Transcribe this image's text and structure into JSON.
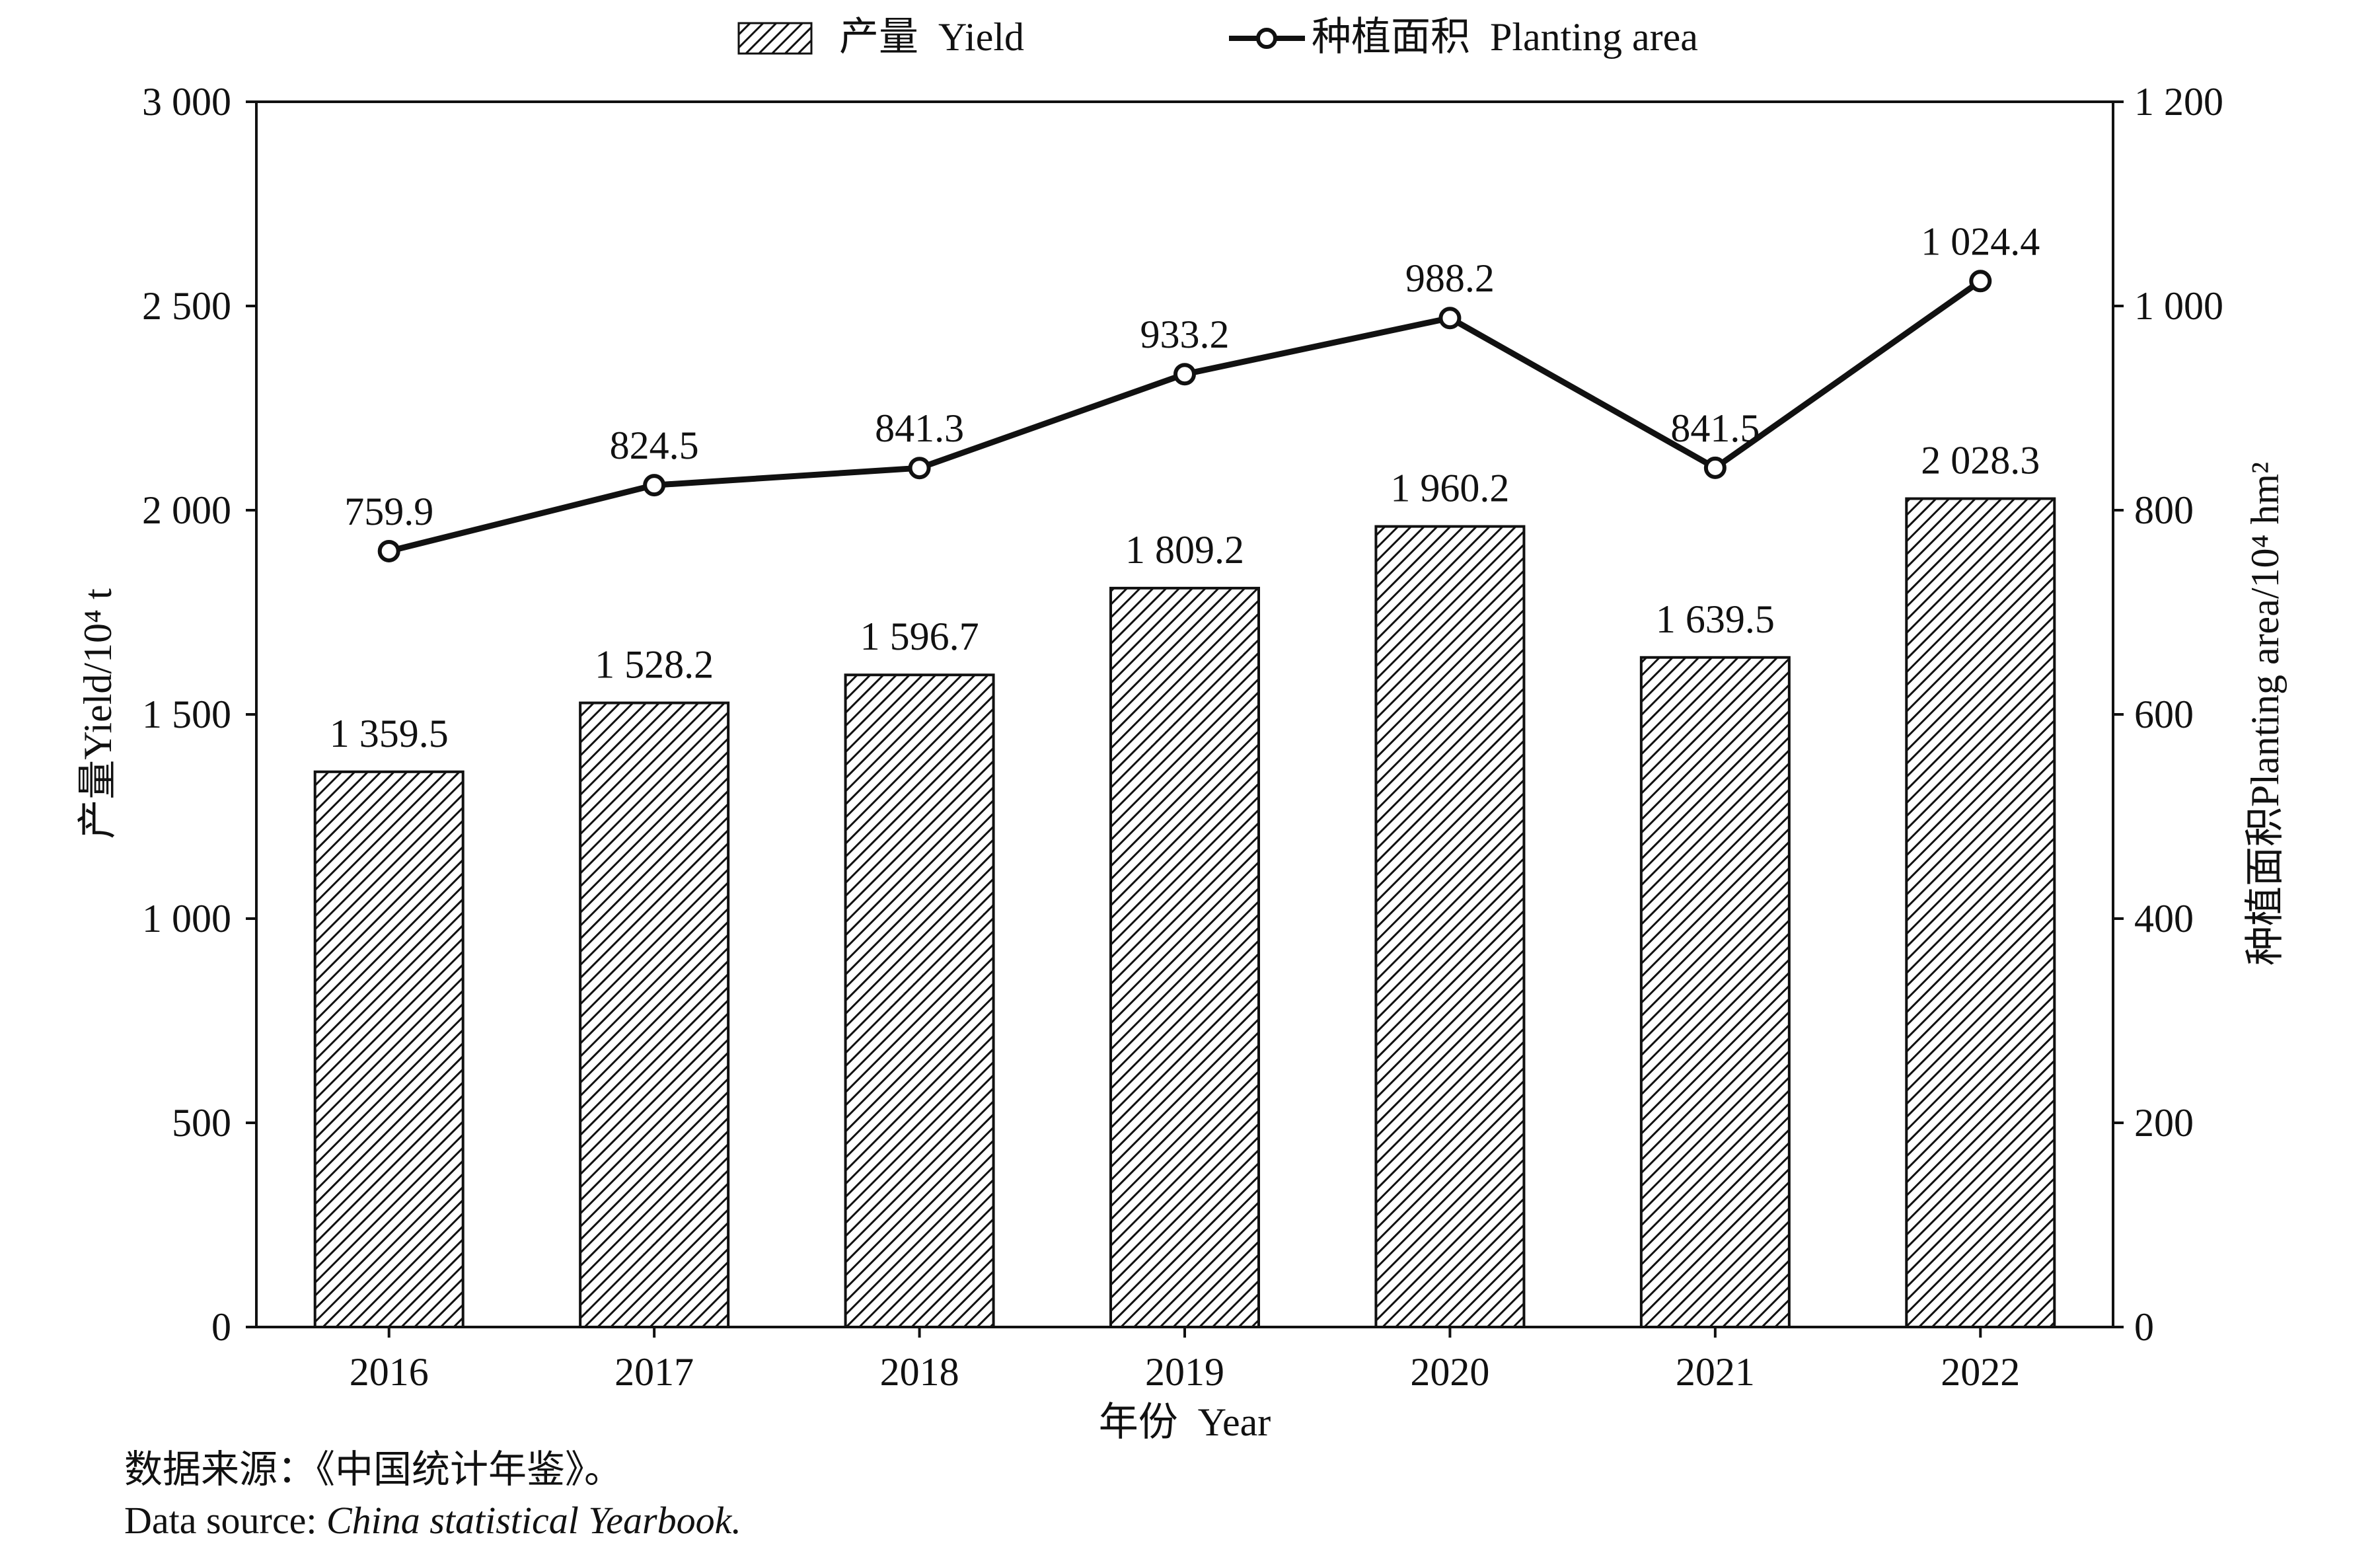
{
  "chart_data": {
    "type": "bar",
    "categories": [
      "2016",
      "2017",
      "2018",
      "2019",
      "2020",
      "2021",
      "2022"
    ],
    "xlabel": "年份  Year",
    "ylabel_left": "产量Yield/10⁴ t",
    "ylabel_right": "种植面积Planting area/10⁴ hm²",
    "ylim_left": [
      0,
      3000
    ],
    "ylim_right": [
      0,
      1200
    ],
    "yticks_left": [
      0,
      500,
      1000,
      1500,
      2000,
      2500,
      3000
    ],
    "yticks_right": [
      0,
      200,
      400,
      600,
      800,
      1000,
      1200
    ],
    "ytick_labels_left": [
      "0",
      "500",
      "1 000",
      "1 500",
      "2 000",
      "2 500",
      "3 000"
    ],
    "ytick_labels_right": [
      "0",
      "200",
      "400",
      "600",
      "800",
      "1 000",
      "1 200"
    ],
    "grid": false,
    "legend_position": "top-center",
    "series": [
      {
        "name": "产量  Yield",
        "type": "bar",
        "axis": "left",
        "pattern": "diagonal-hatch",
        "values": [
          1359.5,
          1528.2,
          1596.7,
          1809.2,
          1960.2,
          1639.5,
          2028.3
        ],
        "labels": [
          "1 359.5",
          "1 528.2",
          "1 596.7",
          "1 809.2",
          "1 960.2",
          "1 639.5",
          "2 028.3"
        ]
      },
      {
        "name": "种植面积  Planting area",
        "type": "line",
        "axis": "right",
        "marker": "open-circle",
        "values": [
          759.9,
          824.5,
          841.3,
          933.2,
          988.2,
          841.5,
          1024.4
        ],
        "labels": [
          "759.9",
          "824.5",
          "841.3",
          "933.2",
          "988.2",
          "841.5",
          "1 024.4"
        ]
      }
    ],
    "colors": {
      "ink": "#111111",
      "background": "#ffffff"
    }
  },
  "source": {
    "cn": "数据来源：《中国统计年鉴》。",
    "en_prefix": "Data source: ",
    "en_title": "China statistical Yearbook."
  }
}
